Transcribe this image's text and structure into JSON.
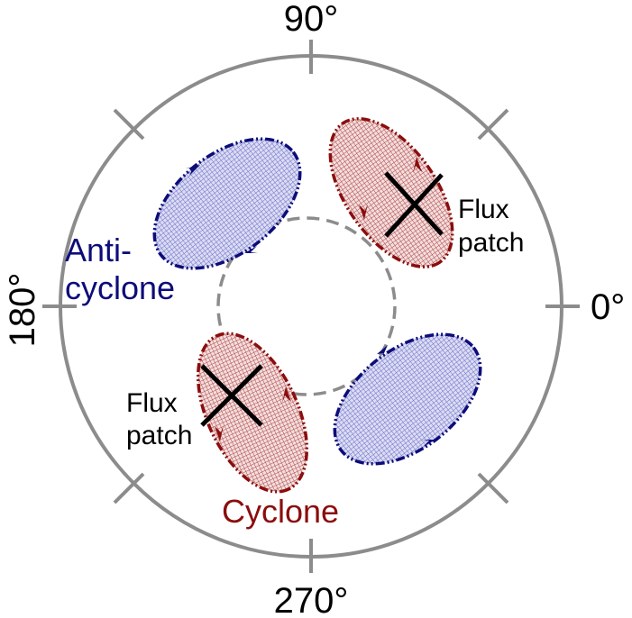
{
  "angles": {
    "top": "90°",
    "right": "0°",
    "bottom": "270°",
    "left": "180°"
  },
  "labels": {
    "anticyclone_line1": "Anti-",
    "anticyclone_line2": "cyclone",
    "cyclone": "Cyclone",
    "flux_patch_right_line1": "Flux",
    "flux_patch_right_line2": "patch",
    "flux_patch_left_line1": "Flux",
    "flux_patch_left_line2": "patch"
  },
  "colors": {
    "circle": "#8c8c8c",
    "cyclone": "#8b0d0d",
    "anticyclone": "#0c0c7a",
    "cyclone_fill": "#d9a3a3",
    "anticyclone_fill": "#b5b8e6",
    "cross": "#000000"
  }
}
